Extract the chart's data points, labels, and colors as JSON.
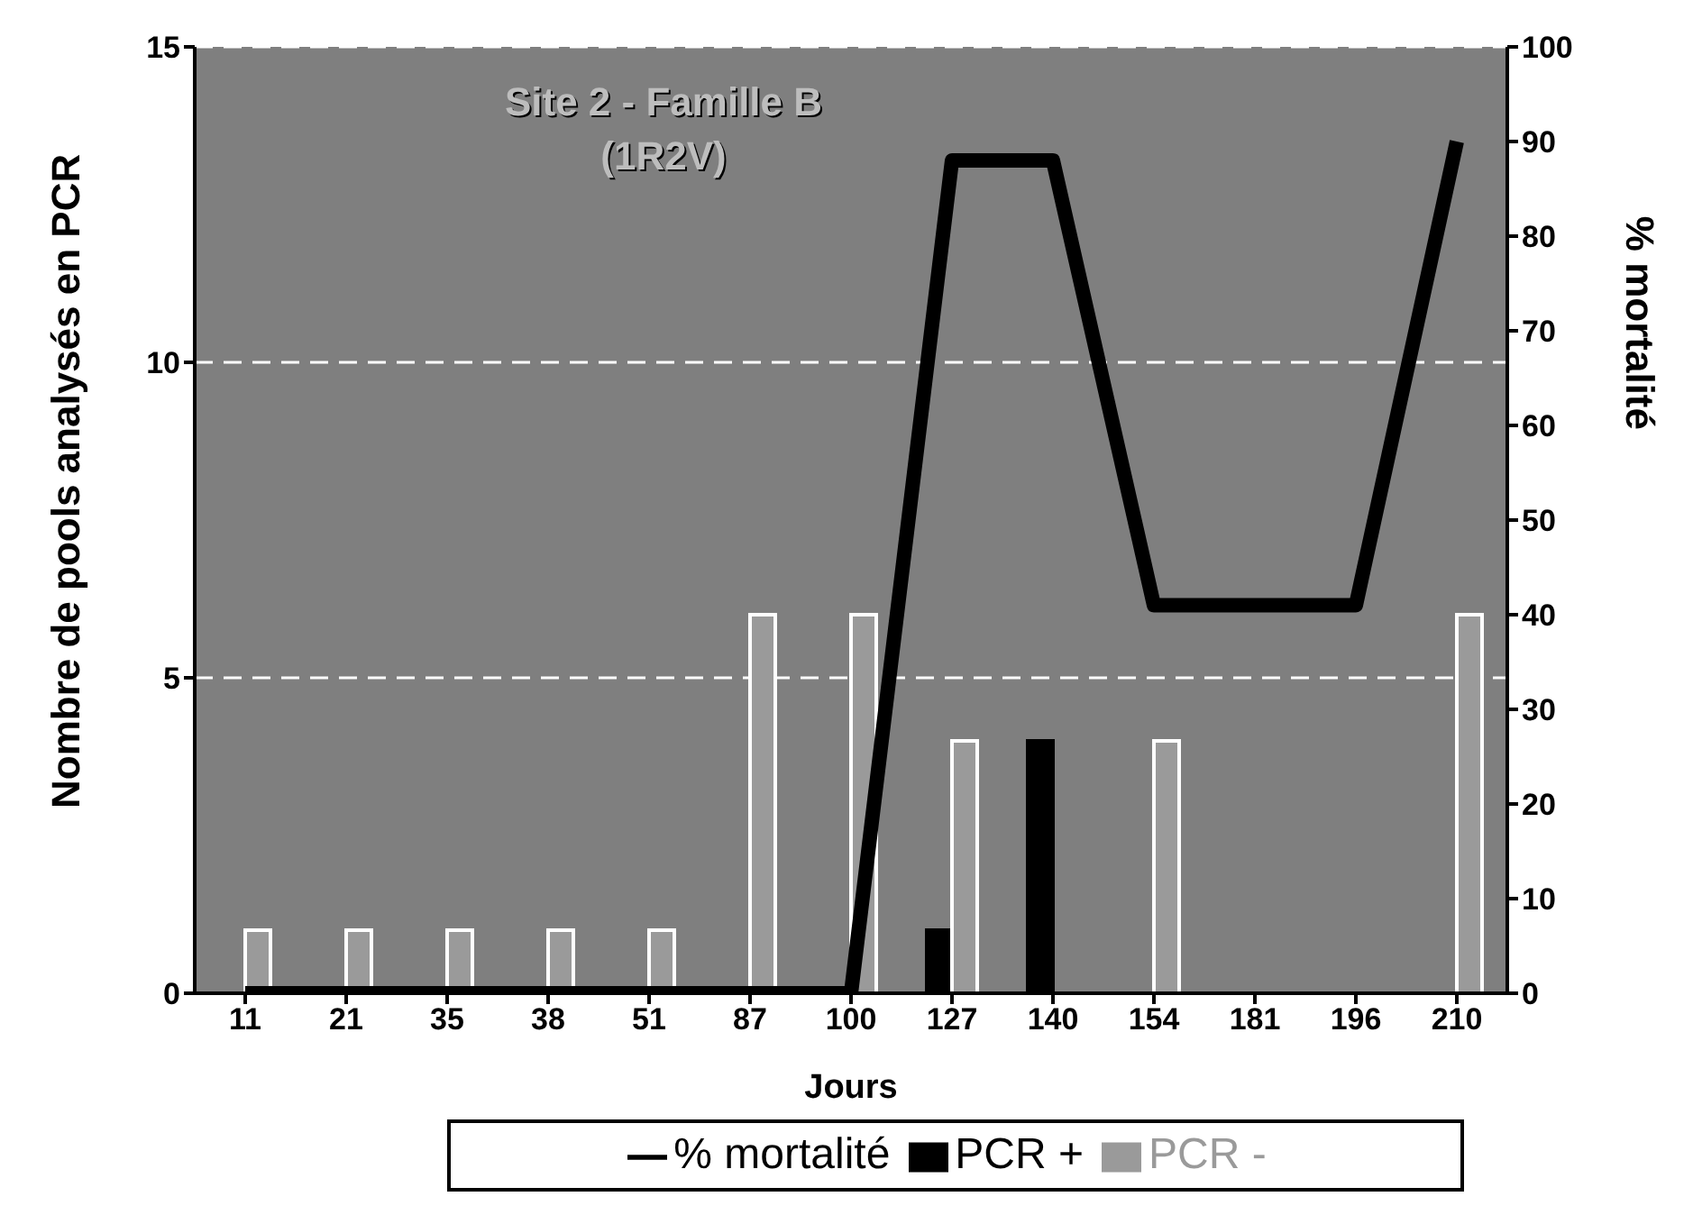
{
  "chart_data": {
    "type": "bar",
    "title": "Site 2 - Famille B",
    "subtitle": "(1R2V)",
    "xlabel": "Jours",
    "ylabel": "Nombre de pools analysés en PCR",
    "y2label": "% mortalité",
    "categories": [
      "11",
      "21",
      "35",
      "38",
      "51",
      "87",
      "100",
      "127",
      "140",
      "154",
      "181",
      "196",
      "210"
    ],
    "series": [
      {
        "name": "PCR +",
        "color": "#000000",
        "values": [
          0,
          0,
          0,
          0,
          0,
          0,
          0,
          1,
          4,
          0,
          0,
          0,
          0
        ]
      },
      {
        "name": "PCR -",
        "color": "#9a9a9a",
        "values": [
          1,
          1,
          1,
          1,
          1,
          6,
          6,
          4,
          0,
          4,
          0,
          0,
          6
        ]
      },
      {
        "name": "% mortalité",
        "type": "line",
        "axis": "y2",
        "color": "#000000",
        "values": [
          0,
          0,
          0,
          0,
          0,
          0,
          0,
          88,
          88,
          41,
          41,
          41,
          90
        ]
      }
    ],
    "ylim": [
      0,
      15
    ],
    "yticks": [
      0,
      5,
      10,
      15
    ],
    "y2lim": [
      0,
      100
    ],
    "y2ticks": [
      0,
      10,
      20,
      30,
      40,
      50,
      60,
      70,
      80,
      90,
      100
    ],
    "grid": "y",
    "line_style": "solid",
    "marker": "none",
    "legend": "bottom"
  }
}
